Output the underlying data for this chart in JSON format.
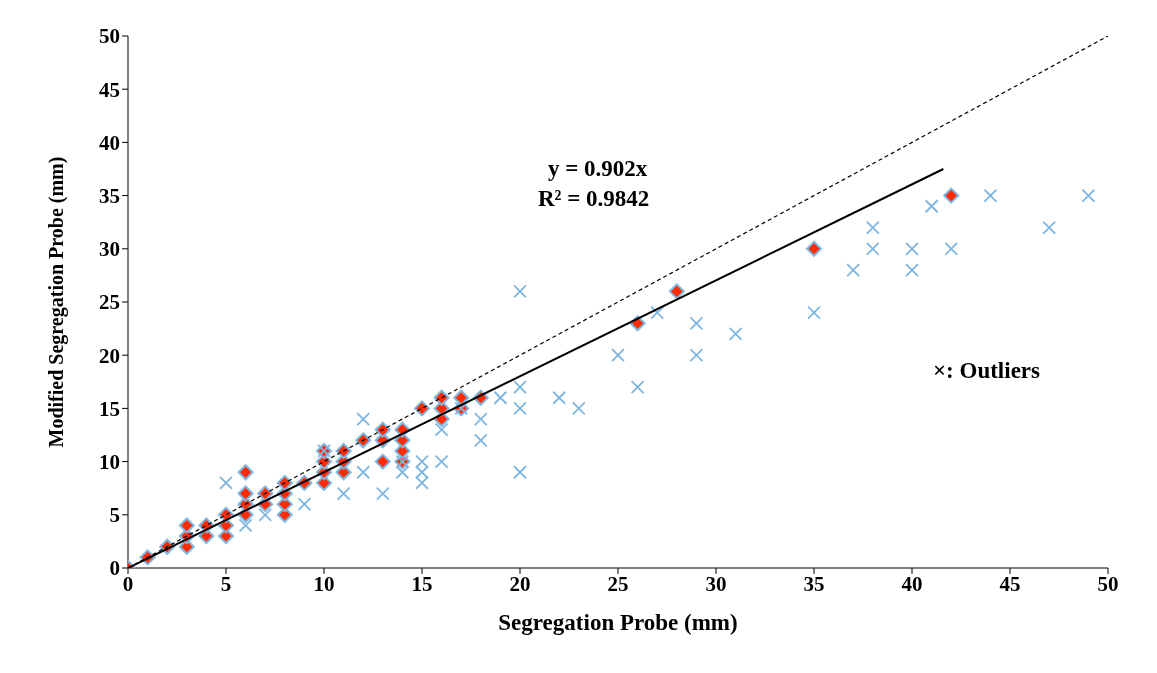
{
  "chart_data": {
    "type": "scatter",
    "xlabel": "Segregation Probe (mm)",
    "ylabel": "Modified Segregation Probe (mm)",
    "xlim": [
      0,
      50
    ],
    "ylim": [
      0,
      50
    ],
    "xticks": [
      0,
      5,
      10,
      15,
      20,
      25,
      30,
      35,
      40,
      45,
      50
    ],
    "yticks": [
      0,
      5,
      10,
      15,
      20,
      25,
      30,
      35,
      40,
      45,
      50
    ],
    "grid": false,
    "legend": false,
    "annotations": [
      "y = 0.902x",
      "R² = 0.9842",
      "×: Outliers"
    ],
    "series": [
      {
        "type": "scatter",
        "marker": "diamond",
        "color": "#ff2a00",
        "x": [
          0,
          1,
          2,
          3,
          3,
          3,
          4,
          4,
          5,
          5,
          5,
          6,
          6,
          6,
          6,
          7,
          7,
          8,
          8,
          8,
          8,
          9,
          10,
          10,
          10,
          10,
          11,
          11,
          11,
          12,
          13,
          13,
          13,
          14,
          14,
          14,
          14,
          15,
          16,
          16,
          16,
          17,
          17,
          18,
          26,
          28,
          35,
          42
        ],
        "values": [
          0,
          1,
          2,
          2,
          3,
          4,
          3,
          4,
          3,
          4,
          5,
          5,
          6,
          7,
          9,
          6,
          7,
          5,
          6,
          7,
          8,
          8,
          8,
          9,
          10,
          11,
          9,
          10,
          11,
          12,
          10,
          12,
          13,
          10,
          11,
          12,
          13,
          15,
          14,
          15,
          16,
          15,
          16,
          16,
          23,
          26,
          30,
          35
        ]
      },
      {
        "type": "scatter",
        "marker": "cross",
        "color": "#7eb6e0",
        "x": [
          5,
          6,
          7,
          9,
          10,
          11,
          12,
          12,
          13,
          14,
          14,
          15,
          15,
          15,
          16,
          16,
          17,
          18,
          18,
          19,
          20,
          20,
          20,
          20,
          22,
          23,
          25,
          26,
          27,
          29,
          29,
          31,
          35,
          37,
          38,
          38,
          40,
          40,
          41,
          42,
          44,
          47,
          49
        ],
        "values": [
          8,
          4,
          5,
          6,
          11,
          7,
          9,
          14,
          7,
          9,
          10,
          8,
          9,
          10,
          10,
          13,
          15,
          12,
          14,
          16,
          9,
          15,
          17,
          26,
          16,
          15,
          20,
          17,
          24,
          20,
          23,
          22,
          24,
          28,
          30,
          32,
          28,
          30,
          34,
          30,
          35,
          32,
          35
        ]
      },
      {
        "type": "line",
        "line_style": "solid",
        "marker": "none",
        "color": "#000000",
        "x": [
          0,
          41.6
        ],
        "values": [
          0,
          37.5
        ]
      },
      {
        "type": "line",
        "line_style": "dashed",
        "marker": "none",
        "color": "#000000",
        "x": [
          0,
          50
        ],
        "values": [
          0,
          50
        ]
      }
    ]
  }
}
